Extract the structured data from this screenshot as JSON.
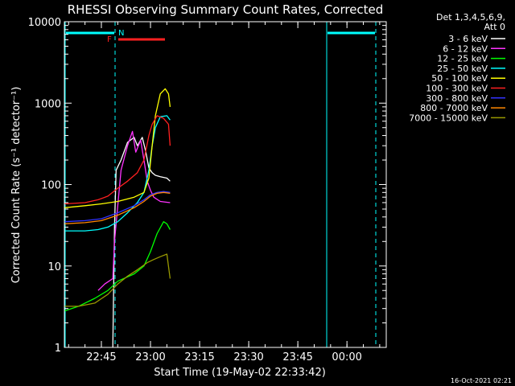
{
  "chart_data": {
    "type": "line",
    "title": "RHESSI Observing Summary Count Rates, Corrected",
    "xlabel": "Start Time (19-May-02 22:33:42)",
    "ylabel": "Corrected Count Rate (s⁻¹ detector⁻¹)",
    "yscale": "log",
    "ylim": [
      1,
      10000
    ],
    "xlim": [
      "22:33:42",
      "00:12:00"
    ],
    "xticks": [
      "22:45",
      "23:00",
      "23:15",
      "23:30",
      "23:45",
      "00:00"
    ],
    "yticks": [
      "1",
      "10",
      "100",
      "1000",
      "10000"
    ],
    "detector_label": [
      "Det 1,3,4,5,6,9,",
      "Att 0"
    ],
    "legend_position": "right",
    "series": [
      {
        "name": "3 - 6 keV",
        "color": "#ffffff",
        "x": [
          "22:48:30",
          "22:49:00",
          "22:49:30",
          "22:51:00",
          "22:53:00",
          "22:55:00",
          "22:56:00",
          "22:57:30",
          "22:58:30",
          "22:59:30",
          "23:00:30",
          "23:01:30",
          "23:03:00",
          "23:05:00",
          "23:06:00"
        ],
        "y": [
          1,
          30,
          150,
          200,
          330,
          380,
          300,
          380,
          260,
          160,
          140,
          130,
          125,
          120,
          110
        ]
      },
      {
        "name": "6 - 12 keV",
        "color": "#ff33ff",
        "x": [
          "22:44:00",
          "22:46:00",
          "22:48:30",
          "22:49:00",
          "22:51:00",
          "22:53:00",
          "22:54:30",
          "22:55:30",
          "22:57:00",
          "22:58:00",
          "22:59:00",
          "23:00:00",
          "23:01:00",
          "23:03:00",
          "23:06:00"
        ],
        "y": [
          5,
          6,
          7,
          20,
          150,
          300,
          450,
          250,
          350,
          200,
          110,
          85,
          70,
          62,
          60
        ]
      },
      {
        "name": "12 - 25 keV",
        "color": "#00ff00",
        "x": [
          "22:33:42",
          "22:38:00",
          "22:43:00",
          "22:47:00",
          "22:50:00",
          "22:55:00",
          "22:58:00",
          "23:00:00",
          "23:02:00",
          "23:04:00",
          "23:05:00",
          "23:06:00"
        ],
        "y": [
          2.8,
          3.2,
          4,
          5,
          6.5,
          8,
          10,
          15,
          25,
          35,
          33,
          28
        ]
      },
      {
        "name": "25 - 50 keV",
        "color": "#00ffff",
        "x": [
          "22:33:42",
          "22:40:00",
          "22:44:00",
          "22:47:00",
          "22:50:00",
          "22:53:00",
          "22:56:00",
          "22:58:00",
          "22:59:30",
          "23:00:30",
          "23:01:30",
          "23:03:00",
          "23:05:00",
          "23:06:00"
        ],
        "y": [
          27,
          27,
          28,
          30,
          35,
          45,
          60,
          80,
          150,
          300,
          500,
          680,
          700,
          620
        ]
      },
      {
        "name": "50 - 100 keV",
        "color": "#ffff00",
        "x": [
          "22:33:42",
          "22:40:00",
          "22:45:00",
          "22:50:00",
          "22:55:00",
          "22:58:00",
          "22:59:30",
          "23:00:30",
          "23:01:30",
          "23:03:00",
          "23:04:30",
          "23:05:30",
          "23:06:00"
        ],
        "y": [
          52,
          55,
          58,
          62,
          70,
          80,
          120,
          300,
          700,
          1300,
          1500,
          1300,
          900
        ]
      },
      {
        "name": "100 - 300 keV",
        "color": "#ff2020",
        "x": [
          "22:33:42",
          "22:40:00",
          "22:44:00",
          "22:47:00",
          "22:50:00",
          "22:53:00",
          "22:56:00",
          "22:58:00",
          "22:59:30",
          "23:00:30",
          "23:02:00",
          "23:04:00",
          "23:05:30",
          "23:06:00"
        ],
        "y": [
          58,
          60,
          65,
          72,
          90,
          110,
          140,
          200,
          400,
          550,
          700,
          650,
          550,
          300
        ]
      },
      {
        "name": "300 - 800 keV",
        "color": "#3333ff",
        "x": [
          "22:33:42",
          "22:40:00",
          "22:45:00",
          "22:50:00",
          "22:55:00",
          "22:58:00",
          "23:00:00",
          "23:02:00",
          "23:04:00",
          "23:06:00"
        ],
        "y": [
          35,
          36,
          38,
          45,
          55,
          65,
          75,
          80,
          82,
          80
        ]
      },
      {
        "name": "800 - 7000 keV",
        "color": "#ff8800",
        "x": [
          "22:33:42",
          "22:40:00",
          "22:45:00",
          "22:50:00",
          "22:55:00",
          "22:58:00",
          "23:00:00",
          "23:02:00",
          "23:04:00",
          "23:06:00"
        ],
        "y": [
          33,
          34,
          36,
          42,
          52,
          62,
          72,
          78,
          80,
          78
        ]
      },
      {
        "name": "7000 - 15000 keV",
        "color": "#999900",
        "x": [
          "22:33:42",
          "22:38:00",
          "22:43:00",
          "22:47:00",
          "22:50:00",
          "22:53:00",
          "22:56:00",
          "22:59:00",
          "23:01:00",
          "23:03:00",
          "23:05:00",
          "23:06:00"
        ],
        "y": [
          3.2,
          3.2,
          3.5,
          4.5,
          6,
          7.5,
          9,
          11,
          12,
          13,
          14,
          7
        ]
      }
    ],
    "flags": [
      {
        "label": "N",
        "color": "#00ffff"
      },
      {
        "label": "F",
        "color": "#ff2020"
      }
    ],
    "footer_date": "16-Oct-2021 02:21"
  }
}
